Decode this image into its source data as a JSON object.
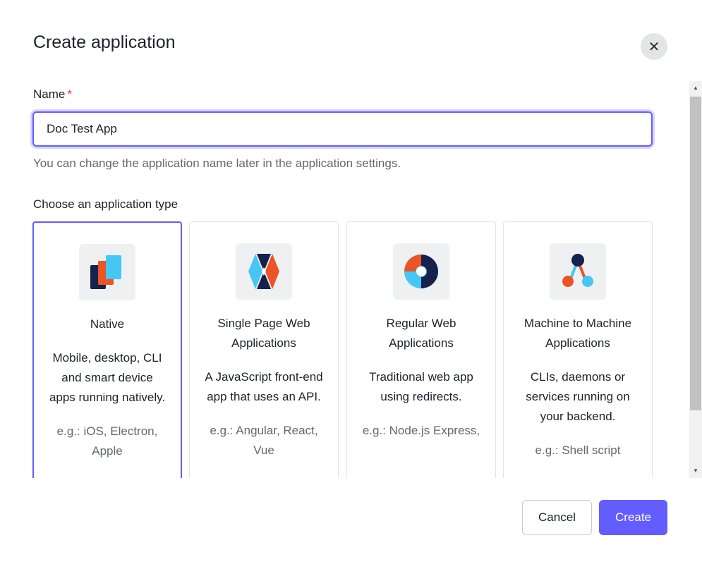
{
  "dialog": {
    "title": "Create application",
    "close_icon": "close-icon"
  },
  "form": {
    "name_label": "Name",
    "required_mark": "*",
    "name_value": "Doc Test App",
    "help_text": "You can change the application name later in the application settings.",
    "type_label": "Choose an application type"
  },
  "app_types": [
    {
      "icon": "native-icon",
      "title": "Native",
      "description": "Mobile, desktop, CLI and smart device apps running natively.",
      "example": "e.g.: iOS, Electron, Apple",
      "selected": true
    },
    {
      "icon": "spa-icon",
      "title": "Single Page Web Applications",
      "description": "A JavaScript front-end app that uses an API.",
      "example": "e.g.: Angular, React, Vue",
      "selected": false
    },
    {
      "icon": "regular-web-icon",
      "title": "Regular Web Applications",
      "description": "Traditional web app using redirects.",
      "example": "e.g.: Node.js Express,",
      "selected": false
    },
    {
      "icon": "m2m-icon",
      "title": "Machine to Machine Applications",
      "description": "CLIs, daemons or services running on your backend.",
      "example": "e.g.: Shell script",
      "selected": false
    }
  ],
  "footer": {
    "cancel": "Cancel",
    "create": "Create"
  },
  "colors": {
    "accent": "#635dff",
    "navy": "#16214d",
    "orange": "#eb5424",
    "cyan": "#44c7f4"
  }
}
